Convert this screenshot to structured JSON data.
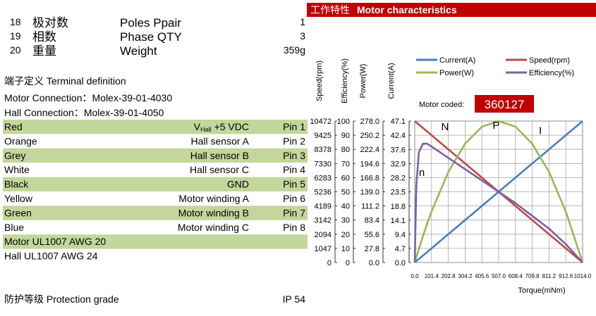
{
  "header": {
    "zh": "工作特性",
    "en": "Motor characteristics"
  },
  "specs": [
    {
      "no": "18",
      "zh": "极对数",
      "en": "Poles Ppair",
      "value": "1"
    },
    {
      "no": "19",
      "zh": "相数",
      "en": "Phase QTY",
      "value": "3"
    },
    {
      "no": "20",
      "zh": "重量",
      "en": "Weight",
      "value": "359g"
    }
  ],
  "terminal": {
    "title": "端子定义 Terminal definition",
    "motor_connection": "Motor Connection：Molex-39-01-4030",
    "hall_connection": "Hall Connection：Molex-39-01-4050",
    "shade_color": "#c3d69b",
    "wires": [
      {
        "color": "Red",
        "function": [
          "V",
          "Hall",
          "+5 VDC"
        ],
        "pin": "Pin 1",
        "shaded": true
      },
      {
        "color": "Orange",
        "function": "Hall sensor A",
        "pin": "Pin 2",
        "shaded": false
      },
      {
        "color": "Grey",
        "function": "Hall sensor B",
        "pin": "Pin 3",
        "shaded": true
      },
      {
        "color": "White",
        "function": "Hall sensor C",
        "pin": "Pin 4",
        "shaded": false
      },
      {
        "color": "Black",
        "function": "GND",
        "pin": "Pin 5",
        "shaded": true
      },
      {
        "color": "Yellow",
        "function": "Motor winding A",
        "pin": "Pin 6",
        "shaded": false
      },
      {
        "color": "Green",
        "function": "Motor winding B",
        "pin": "Pin 7",
        "shaded": true
      },
      {
        "color": "Blue",
        "function": "Motor winding C",
        "pin": "Pin 8",
        "shaded": false
      }
    ],
    "cables": [
      {
        "text": "Motor UL1007 AWG 20",
        "shaded": true
      },
      {
        "text": "Hall UL1007 AWG 24",
        "shaded": false
      }
    ]
  },
  "protection": {
    "label": "防护等级 Protection grade",
    "value": "IP 54"
  },
  "chart_data": {
    "type": "line",
    "x_label": "Torque(mNm)",
    "x": [
      0,
      10,
      25,
      50,
      75,
      101.4,
      202.8,
      304.2,
      405.6,
      507,
      608.4,
      709.8,
      811.2,
      912.6,
      1014
    ],
    "xlim": [
      0,
      1014
    ],
    "xticks": [
      {
        "value": 0,
        "label": "0.0"
      },
      101.4,
      202.8,
      304.2,
      405.6,
      {
        "value": 507,
        "label": "507.0"
      },
      608.4,
      709.8,
      811.2,
      912.6,
      {
        "value": 1014,
        "label": "1014.0"
      }
    ],
    "grid": true,
    "y_axes": [
      {
        "label": "Speed(rpm)",
        "ylim": [
          0,
          10472
        ],
        "yticks": [
          0,
          1047,
          2094,
          3142,
          4189,
          5236,
          6283,
          7330,
          8378,
          9425,
          10472
        ]
      },
      {
        "label": "Efficiency(%)",
        "ylim": [
          0,
          100
        ],
        "yticks": [
          0,
          10,
          20,
          30,
          40,
          50,
          60,
          70,
          80,
          90,
          100
        ]
      },
      {
        "label": "Power(W)",
        "ylim": [
          0,
          278
        ],
        "yticks": [
          {
            "value": 0,
            "label": "0.0"
          },
          27.8,
          55.6,
          83.4,
          111.2,
          {
            "value": 139,
            "label": "139.0"
          },
          166.8,
          194.6,
          222.4,
          250.2,
          {
            "value": 278,
            "label": "278.0"
          }
        ]
      },
      {
        "label": "Current(A)",
        "ylim": [
          0,
          47.1
        ],
        "yticks": [
          {
            "value": 0,
            "label": "0.0"
          },
          4.7,
          9.4,
          14.1,
          18.8,
          23.5,
          28.2,
          32.9,
          37.6,
          42.4,
          47.1
        ]
      }
    ],
    "series": [
      {
        "name": "Current(A)",
        "color": "#4a7ebb",
        "axis": 3,
        "values": [
          0,
          0.46,
          1.16,
          2.32,
          3.48,
          4.71,
          9.42,
          14.13,
          18.84,
          23.55,
          28.26,
          32.97,
          37.68,
          42.39,
          47.1
        ]
      },
      {
        "name": "Speed(rpm)",
        "color": "#be4b48",
        "axis": 0,
        "values": [
          10472,
          10369,
          10214,
          9956,
          9698,
          9425,
          8378,
          7330,
          6283,
          5236,
          4189,
          3142,
          2094,
          1047,
          0
        ]
      },
      {
        "name": "Power(W)",
        "color": "#98b954",
        "axis": 2,
        "values": [
          0,
          10.9,
          26.7,
          52.1,
          76.2,
          100.1,
          177.9,
          233.5,
          266.9,
          278,
          266.9,
          233.5,
          177.9,
          100.1,
          0
        ]
      },
      {
        "name": "Efficiency(%)",
        "color": "#7d60a0",
        "axis": 1,
        "values": [
          0,
          55,
          78,
          84,
          84,
          82,
          74,
          66,
          58,
          50,
          42,
          33,
          24,
          13,
          0
        ]
      }
    ],
    "annotations": [
      {
        "text": "N",
        "x": 160,
        "y": 9800
      },
      {
        "text": "P",
        "x": 470,
        "y": 9900
      },
      {
        "text": "I",
        "x": 750,
        "y": 9500
      },
      {
        "text": "n",
        "x": 25,
        "y": 6400
      }
    ],
    "motor_code": {
      "label": "Motor coded:",
      "value": "360127",
      "color": "#c00000"
    }
  }
}
